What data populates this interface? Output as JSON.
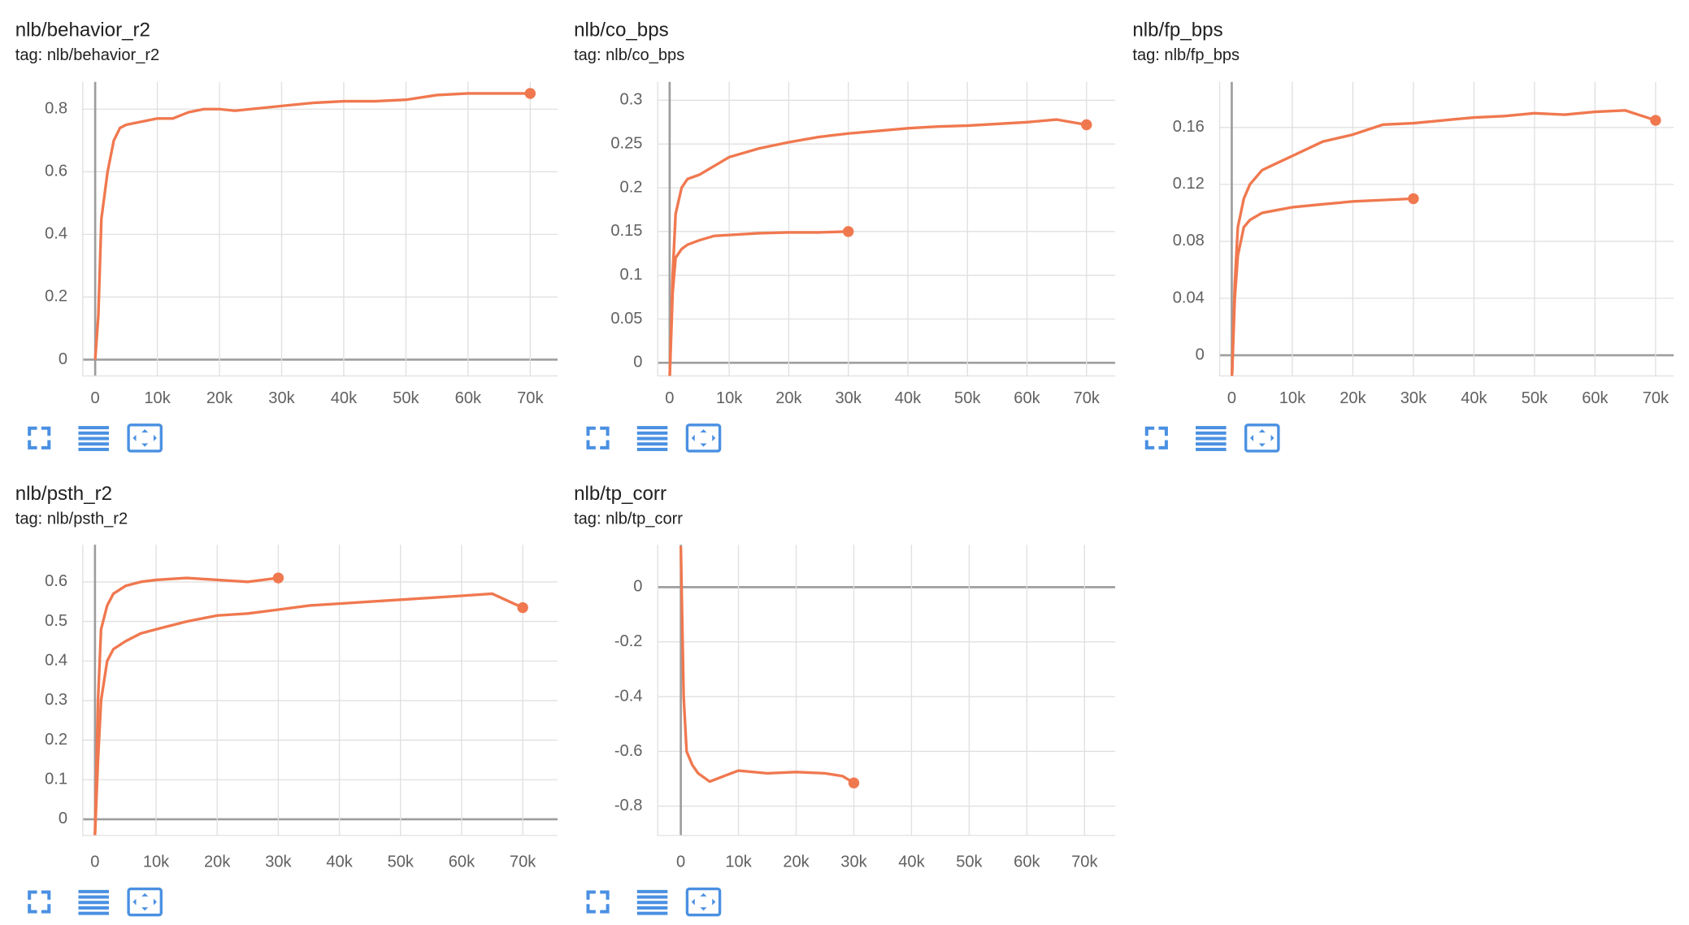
{
  "chart_data": [
    {
      "type": "line",
      "title": "nlb/behavior_r2",
      "subtitle": "tag: nlb/behavior_r2",
      "x": [
        0,
        500,
        1000,
        2000,
        3000,
        4000,
        5000,
        7500,
        10000,
        12500,
        15000,
        17500,
        20000,
        22500,
        25000,
        30000,
        35000,
        40000,
        45000,
        50000,
        55000,
        60000,
        65000,
        70000
      ],
      "series": [
        {
          "color": "#f0784f",
          "values": [
            0,
            0.14,
            0.45,
            0.6,
            0.7,
            0.74,
            0.75,
            0.76,
            0.77,
            0.77,
            0.79,
            0.8,
            0.8,
            0.795,
            0.8,
            0.81,
            0.82,
            0.825,
            0.825,
            0.83,
            0.845,
            0.85,
            0.85,
            0.85
          ]
        }
      ],
      "xlim": [
        -2000,
        74400
      ],
      "ylim": [
        -0.052,
        0.887
      ],
      "xticks": [
        0,
        {
          "value": 10000,
          "label": "10k"
        },
        {
          "value": 20000,
          "label": "20k"
        },
        {
          "value": 30000,
          "label": "30k"
        },
        {
          "value": 40000,
          "label": "40k"
        },
        {
          "value": 50000,
          "label": "50k"
        },
        {
          "value": 60000,
          "label": "60k"
        },
        {
          "value": 70000,
          "label": "70k"
        }
      ],
      "yticks": [
        0,
        0.2,
        0.4,
        0.6,
        0.8
      ],
      "grid": true
    },
    {
      "type": "line",
      "title": "nlb/co_bps",
      "subtitle": "tag: nlb/co_bps",
      "x": [
        0,
        500,
        1000,
        2000,
        3000,
        5000,
        7500,
        10000,
        15000,
        20000,
        25000,
        30000,
        35000,
        40000,
        45000,
        50000,
        55000,
        60000,
        65000,
        70000
      ],
      "series": [
        {
          "color": "#f0784f",
          "values": [
            -0.02,
            0.1,
            0.17,
            0.2,
            0.21,
            0.215,
            0.225,
            0.235,
            0.245,
            0.252,
            0.258,
            0.262,
            0.265,
            0.268,
            0.27,
            0.271,
            0.273,
            0.275,
            0.278,
            0.272
          ]
        },
        {
          "color": "#f0784f",
          "values": [
            -0.02,
            0.08,
            0.12,
            0.13,
            0.135,
            0.14,
            0.145,
            0.146,
            0.148,
            0.149,
            0.149,
            0.15,
            null,
            null,
            null,
            null,
            null,
            null,
            null,
            null
          ]
        }
      ],
      "xlim": [
        -2000,
        74800
      ],
      "ylim": [
        -0.015,
        0.321
      ],
      "xticks": [
        0,
        {
          "value": 10000,
          "label": "10k"
        },
        {
          "value": 20000,
          "label": "20k"
        },
        {
          "value": 30000,
          "label": "30k"
        },
        {
          "value": 40000,
          "label": "40k"
        },
        {
          "value": 50000,
          "label": "50k"
        },
        {
          "value": 60000,
          "label": "60k"
        },
        {
          "value": 70000,
          "label": "70k"
        }
      ],
      "yticks": [
        0,
        0.05,
        0.1,
        0.15,
        0.2,
        0.25,
        0.3
      ],
      "grid": true
    },
    {
      "type": "line",
      "title": "nlb/fp_bps",
      "subtitle": "tag: nlb/fp_bps",
      "x": [
        0,
        500,
        1000,
        2000,
        3000,
        5000,
        7500,
        10000,
        15000,
        20000,
        25000,
        30000,
        35000,
        40000,
        45000,
        50000,
        55000,
        60000,
        65000,
        70000
      ],
      "series": [
        {
          "color": "#f0784f",
          "values": [
            -0.02,
            0.05,
            0.09,
            0.11,
            0.12,
            0.13,
            0.135,
            0.14,
            0.15,
            0.155,
            0.162,
            0.163,
            0.165,
            0.167,
            0.168,
            0.17,
            0.169,
            0.171,
            0.172,
            0.165
          ]
        },
        {
          "color": "#f0784f",
          "values": [
            -0.02,
            0.04,
            0.07,
            0.09,
            0.095,
            0.1,
            0.102,
            0.104,
            0.106,
            0.108,
            0.109,
            0.11,
            null,
            null,
            null,
            null,
            null,
            null,
            null,
            null
          ]
        }
      ],
      "xlim": [
        -2000,
        73000
      ],
      "ylim": [
        -0.0145,
        0.192
      ],
      "xticks": [
        0,
        {
          "value": 10000,
          "label": "10k"
        },
        {
          "value": 20000,
          "label": "20k"
        },
        {
          "value": 30000,
          "label": "30k"
        },
        {
          "value": 40000,
          "label": "40k"
        },
        {
          "value": 50000,
          "label": "50k"
        },
        {
          "value": 60000,
          "label": "60k"
        },
        {
          "value": 70000,
          "label": "70k"
        }
      ],
      "yticks": [
        0,
        0.04,
        0.08,
        0.12,
        0.16
      ],
      "grid": true
    },
    {
      "type": "line",
      "title": "nlb/psth_r2",
      "subtitle": "tag: nlb/psth_r2",
      "x": [
        0,
        500,
        1000,
        2000,
        3000,
        5000,
        7500,
        10000,
        15000,
        20000,
        25000,
        30000,
        35000,
        40000,
        45000,
        50000,
        55000,
        60000,
        65000,
        70000
      ],
      "series": [
        {
          "color": "#f0784f",
          "values": [
            -0.04,
            0.3,
            0.48,
            0.54,
            0.57,
            0.59,
            0.6,
            0.605,
            0.61,
            0.605,
            0.6,
            0.61,
            null,
            null,
            null,
            null,
            null,
            null,
            null,
            null
          ]
        },
        {
          "color": "#f0784f",
          "values": [
            -0.04,
            0.15,
            0.3,
            0.4,
            0.43,
            0.45,
            0.47,
            0.48,
            0.5,
            0.515,
            0.52,
            0.53,
            0.54,
            0.545,
            0.55,
            0.555,
            0.56,
            0.565,
            0.57,
            0.535
          ]
        }
      ],
      "xlim": [
        -2000,
        75700
      ],
      "ylim": [
        -0.041,
        0.694
      ],
      "xticks": [
        0,
        {
          "value": 10000,
          "label": "10k"
        },
        {
          "value": 20000,
          "label": "20k"
        },
        {
          "value": 30000,
          "label": "30k"
        },
        {
          "value": 40000,
          "label": "40k"
        },
        {
          "value": 50000,
          "label": "50k"
        },
        {
          "value": 60000,
          "label": "60k"
        },
        {
          "value": 70000,
          "label": "70k"
        }
      ],
      "yticks": [
        0,
        0.1,
        0.2,
        0.3,
        0.4,
        0.5,
        0.6
      ],
      "grid": true
    },
    {
      "type": "line",
      "title": "nlb/tp_corr",
      "subtitle": "tag: nlb/tp_corr",
      "x": [
        0,
        500,
        1000,
        2000,
        3000,
        5000,
        7500,
        10000,
        15000,
        20000,
        25000,
        28000,
        30000
      ],
      "series": [
        {
          "color": "#f0784f",
          "values": [
            0.15,
            -0.4,
            -0.6,
            -0.65,
            -0.68,
            -0.71,
            -0.69,
            -0.67,
            -0.68,
            -0.675,
            -0.68,
            -0.69,
            -0.715
          ]
        }
      ],
      "xlim": [
        -4000,
        75300
      ],
      "ylim": [
        -0.907,
        0.155
      ],
      "xticks": [
        0,
        {
          "value": 10000,
          "label": "10k"
        },
        {
          "value": 20000,
          "label": "20k"
        },
        {
          "value": 30000,
          "label": "30k"
        },
        {
          "value": 40000,
          "label": "40k"
        },
        {
          "value": 50000,
          "label": "50k"
        },
        {
          "value": 60000,
          "label": "60k"
        },
        {
          "value": 70000,
          "label": "70k"
        }
      ],
      "yticks": [
        -0.8,
        -0.6,
        -0.4,
        -0.2,
        0
      ],
      "grid": true
    }
  ]
}
